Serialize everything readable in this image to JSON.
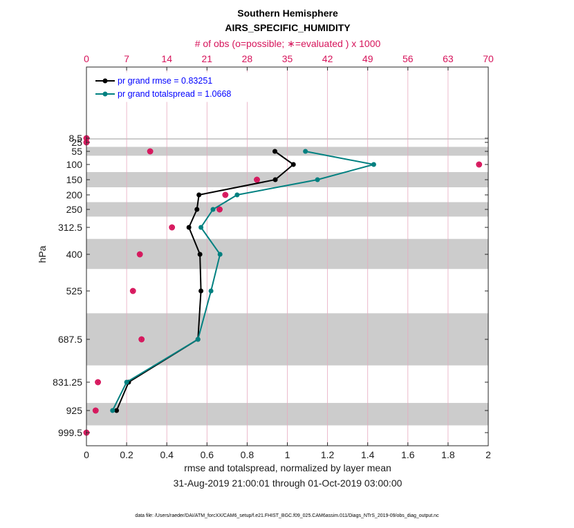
{
  "chart_data": {
    "type": "line",
    "title": "Southern Hemisphere",
    "subtitle": "AIRS_SPECIFIC_HUMIDITY",
    "top_axis_label": "# of obs (o=possible; ∗=evaluated ) x 1000",
    "top_ticks": [
      "0",
      "7",
      "14",
      "21",
      "28",
      "35",
      "42",
      "49",
      "56",
      "63",
      "70"
    ],
    "top_xlim": [
      0,
      70
    ],
    "xlabel": "rmse and totalspread, normalized by layer mean",
    "xlabel2": "31-Aug-2019 21:00:01 through 01-Oct-2019 03:00:00",
    "x_ticks": [
      "0",
      "0.2",
      "0.4",
      "0.6",
      "0.8",
      "1",
      "1.2",
      "1.4",
      "1.6",
      "1.8",
      "2"
    ],
    "xlim": [
      0,
      2
    ],
    "ylabel": "hPa",
    "levels": [
      8.5,
      25,
      55,
      100,
      150,
      200,
      250,
      312.5,
      400,
      525,
      687.5,
      831.25,
      925,
      999.5
    ],
    "level_labels": [
      "8.5",
      "25",
      "55",
      "100",
      "150",
      "200",
      "250",
      "312.5",
      "400",
      "525",
      "687.5",
      "831.25",
      "925",
      "999.5"
    ],
    "layer_bands": [
      [
        0,
        2
      ],
      [
        40,
        70
      ],
      [
        125,
        175
      ],
      [
        225,
        275
      ],
      [
        350,
        450
      ],
      [
        600,
        775
      ],
      [
        900,
        975
      ]
    ],
    "series": [
      {
        "name": "rmse",
        "legend": "pr grand rmse = 0.83251",
        "color": "#000000",
        "x": [
          0.938,
          1.03,
          0.94,
          0.56,
          0.55,
          0.51,
          0.565,
          0.57,
          0.555,
          0.21,
          0.15
        ],
        "y": [
          55,
          100,
          150,
          200,
          250,
          312.5,
          400,
          525,
          687.5,
          831.25,
          925
        ]
      },
      {
        "name": "totalspread",
        "legend": "pr grand totalspread = 1.0668",
        "color": "#008080",
        "x": [
          1.09,
          1.43,
          1.15,
          0.75,
          0.63,
          0.57,
          0.665,
          0.62,
          0.555,
          0.2,
          0.13
        ],
        "y": [
          55,
          100,
          150,
          200,
          250,
          312.5,
          400,
          525,
          687.5,
          831.25,
          925
        ]
      }
    ],
    "obs_possible": [
      0,
      0,
      11.1,
      68.4,
      29.7,
      24.2,
      23.2,
      14.9,
      9.3,
      8.1,
      9.6,
      2.0,
      1.6,
      0
    ],
    "obs_evaluated": [
      0,
      0,
      11.1,
      68.4,
      29.7,
      24.2,
      23.2,
      14.9,
      9.3,
      8.1,
      9.6,
      2.0,
      1.6,
      0
    ]
  },
  "footer": "data file: /Users/raeder/DAI/ATM_forcXX/CAM6_setup/f.e21.FHIST_BGC.f09_025.CAM6assim.011/Diags_NTrS_2019-09/obs_diag_output.nc",
  "colors": {
    "obs": "#d6135a",
    "band": "#cccccc",
    "legend_text": "#0000ff"
  }
}
